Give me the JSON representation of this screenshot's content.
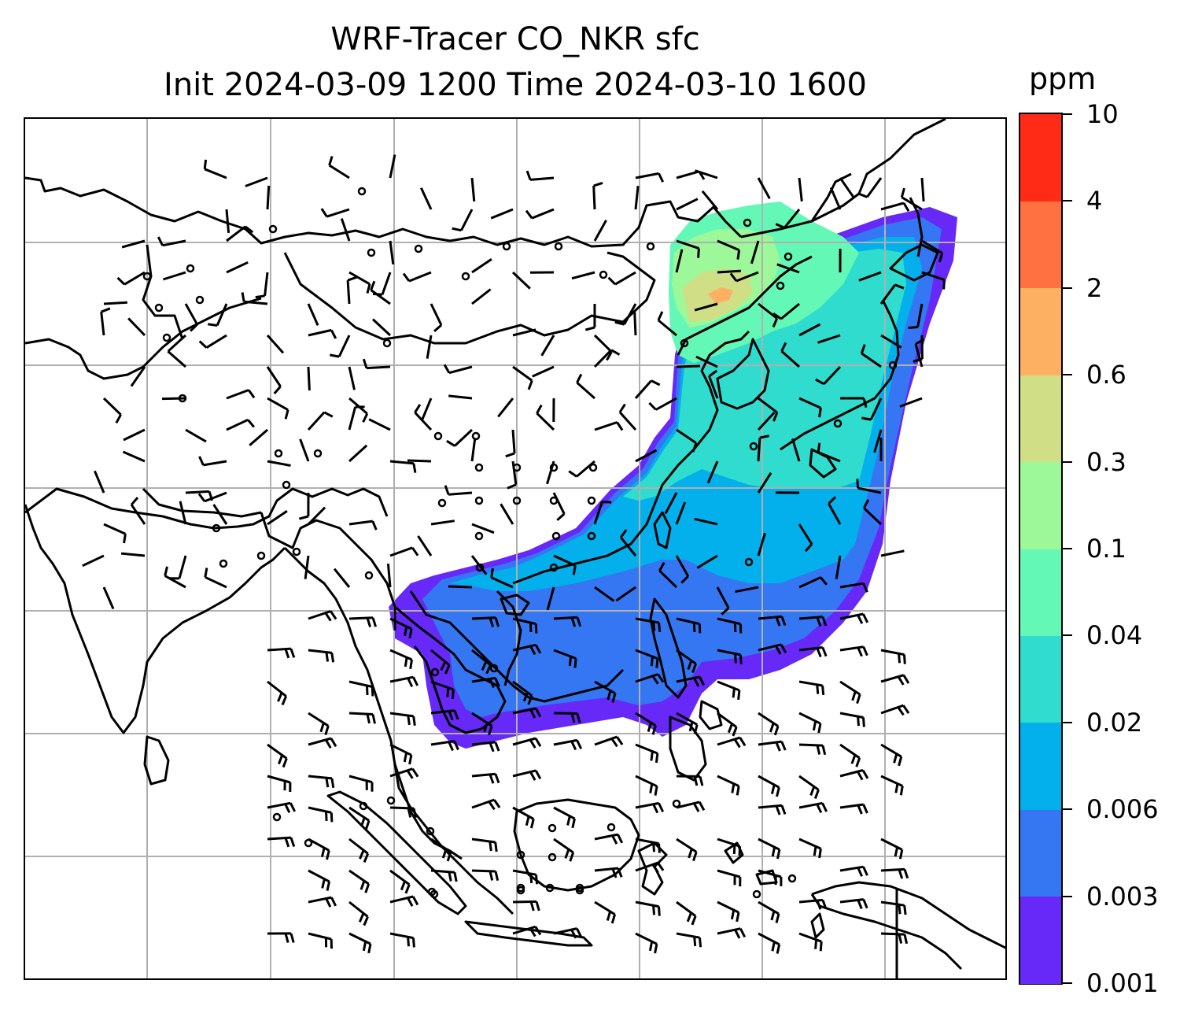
{
  "title": {
    "line1": "WRF-Tracer CO_NKR sfc",
    "line2": "Init 2024-03-09 1200 Time 2024-03-10 1600"
  },
  "colorbar": {
    "unit": "ppm",
    "levels": [
      "0.001",
      "0.003",
      "0.006",
      "0.02",
      "0.04",
      "0.1",
      "0.3",
      "0.6",
      "2",
      "4",
      "10"
    ],
    "colors": [
      "#6629f7",
      "#3577f2",
      "#03b0ec",
      "#2fdccd",
      "#64f8b6",
      "#9cf898",
      "#d0df85",
      "#fdb062",
      "#ff7140",
      "#ff2b17"
    ]
  },
  "map": {
    "projection_grid": "lat/lon gridlines",
    "grid_color": "#b0b0b0",
    "coast_color": "#000000",
    "contains": [
      "coastlines",
      "country borders",
      "wind barbs",
      "calm-wind circles",
      "CO_NKR tracer shading"
    ]
  }
}
